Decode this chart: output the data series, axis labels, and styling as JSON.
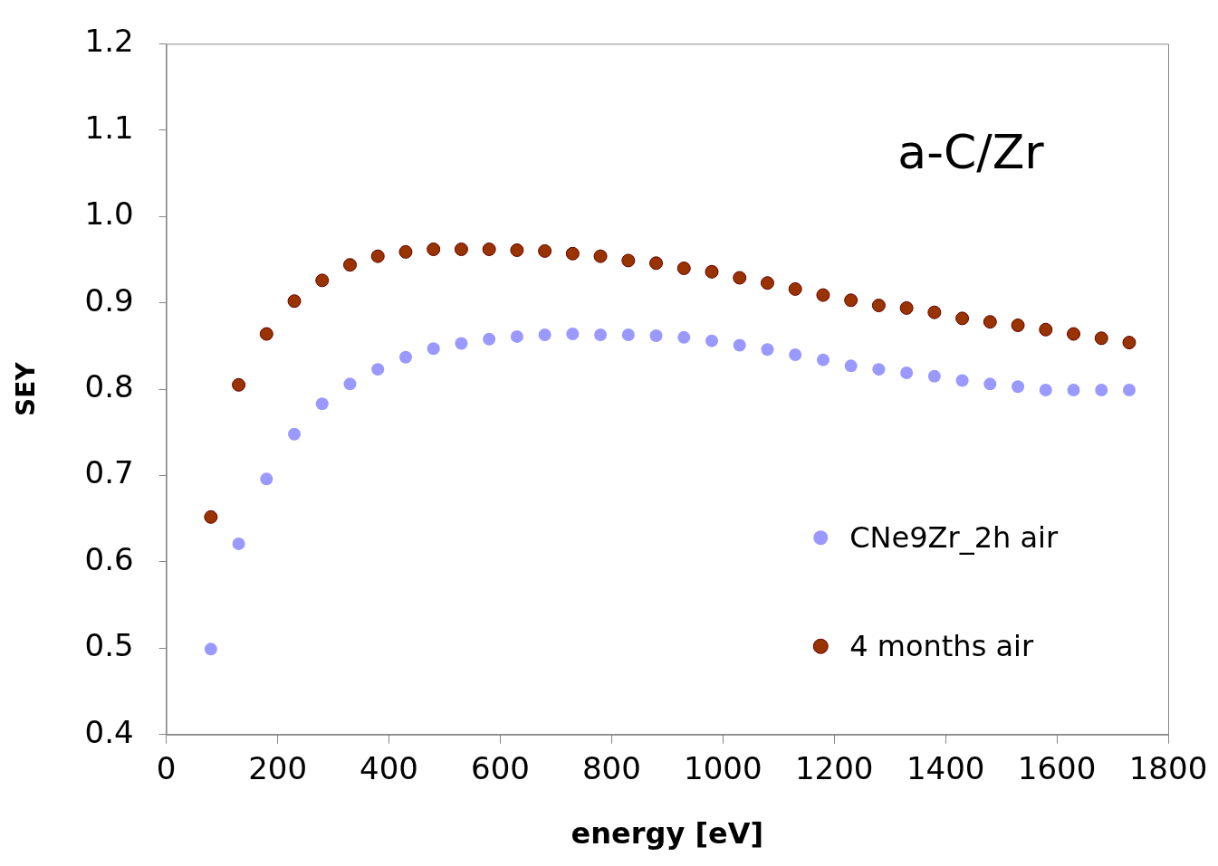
{
  "chart_data": {
    "type": "scatter",
    "xlabel": "energy [eV]",
    "ylabel": "SEY",
    "annotations": [
      "a-C/Zr"
    ],
    "x": [
      80,
      130,
      180,
      230,
      280,
      330,
      380,
      430,
      480,
      530,
      580,
      630,
      680,
      730,
      780,
      830,
      880,
      930,
      980,
      1030,
      1080,
      1130,
      1180,
      1230,
      1280,
      1330,
      1380,
      1430,
      1480,
      1530,
      1580,
      1630,
      1680,
      1730
    ],
    "series": [
      {
        "name": "CNe9Zr_2h air",
        "color": "#9999ff",
        "values": [
          0.499,
          0.621,
          0.696,
          0.748,
          0.783,
          0.806,
          0.823,
          0.837,
          0.847,
          0.853,
          0.858,
          0.861,
          0.863,
          0.864,
          0.863,
          0.863,
          0.862,
          0.86,
          0.856,
          0.851,
          0.846,
          0.84,
          0.834,
          0.827,
          0.823,
          0.819,
          0.815,
          0.81,
          0.806,
          0.803,
          0.799,
          0.799,
          0.799,
          0.799
        ]
      },
      {
        "name": "4 months air",
        "color": "#993300",
        "values": [
          0.652,
          0.805,
          0.864,
          0.902,
          0.926,
          0.944,
          0.954,
          0.959,
          0.962,
          0.962,
          0.962,
          0.961,
          0.96,
          0.957,
          0.954,
          0.949,
          0.946,
          0.94,
          0.936,
          0.929,
          0.923,
          0.916,
          0.909,
          0.903,
          0.897,
          0.894,
          0.889,
          0.882,
          0.878,
          0.874,
          0.869,
          0.864,
          0.859,
          0.854
        ]
      }
    ],
    "xlim": [
      0,
      1800
    ],
    "xticks": [
      0,
      200,
      400,
      600,
      800,
      1000,
      1200,
      1400,
      1600,
      1800
    ],
    "ylim": [
      0.4,
      1.2
    ],
    "yticks": [
      0.4,
      0.5,
      0.6,
      0.7,
      0.8,
      0.9,
      {
        "value": 1,
        "label": "1.0"
      },
      1.1,
      1.2
    ],
    "grid": false,
    "legend": "right",
    "marker": "circle"
  }
}
